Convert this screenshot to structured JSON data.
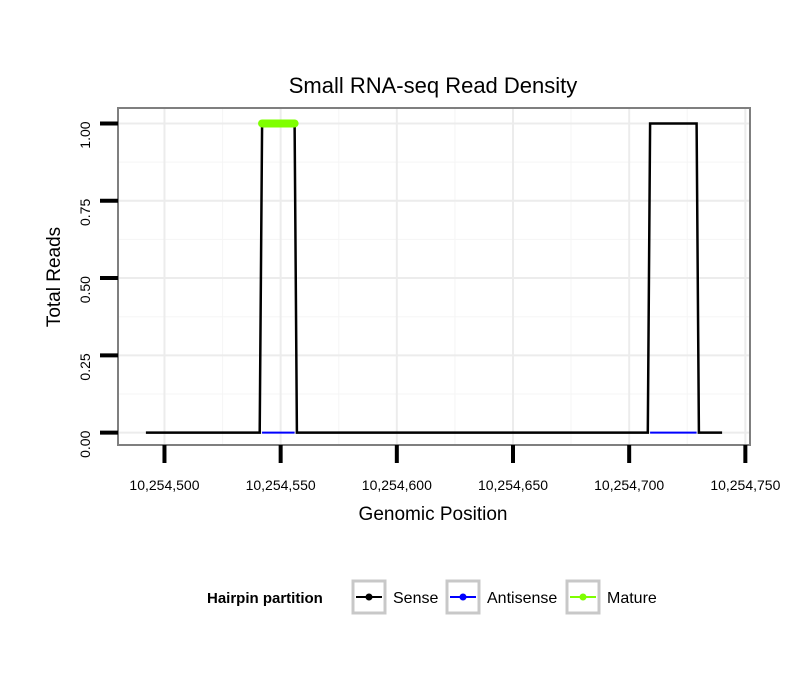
{
  "chart_data": {
    "type": "line",
    "title": "Small RNA-seq Read Density",
    "xlabel": "Genomic Position",
    "ylabel": "Total Reads",
    "xlim": [
      10254480,
      10254752
    ],
    "ylim": [
      -0.04,
      1.05
    ],
    "x_ticks": [
      10254500,
      10254550,
      10254600,
      10254650,
      10254700,
      10254750
    ],
    "x_tick_labels": [
      "10,254,500",
      "10,254,550",
      "10,254,600",
      "10,254,650",
      "10,254,700",
      "10,254,750"
    ],
    "y_ticks": [
      0,
      0.25,
      0.5,
      0.75,
      1.0
    ],
    "y_tick_labels": [
      "0.00",
      "0.25",
      "0.50",
      "0.75",
      "1.00"
    ],
    "grid": true,
    "legend": {
      "title": "Hairpin partition",
      "position": "bottom"
    },
    "series": [
      {
        "name": "Sense",
        "color": "#000000",
        "x": [
          10254492,
          10254541,
          10254542,
          10254556,
          10254557,
          10254708,
          10254709,
          10254729,
          10254730,
          10254740
        ],
        "y": [
          0,
          0,
          1,
          1,
          0,
          0,
          1,
          1,
          0,
          0
        ]
      },
      {
        "name": "Antisense",
        "color": "#0000ff",
        "x": [
          10254542,
          10254556,
          10254709,
          10254729
        ],
        "y": [
          0,
          0,
          0,
          0
        ]
      },
      {
        "name": "Mature",
        "color": "#7fff00",
        "x": [
          10254542,
          10254556
        ],
        "y": [
          1,
          1
        ]
      }
    ]
  }
}
